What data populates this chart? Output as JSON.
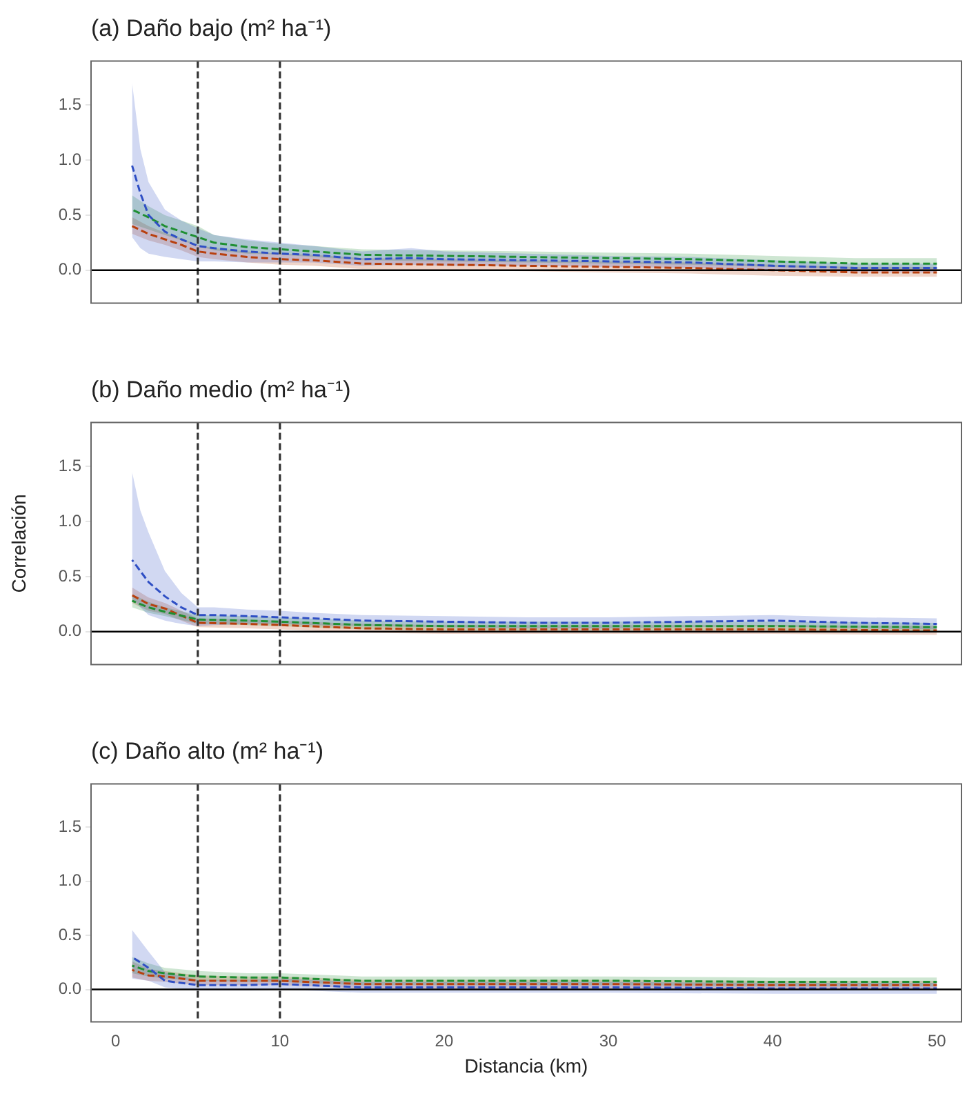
{
  "chart_data": [
    {
      "type": "line",
      "title": "(a) Daño bajo (m² ha⁻¹)",
      "line_style": "dashed",
      "marker": "none",
      "grid": false,
      "legend": false,
      "tick_labels": "y",
      "xlim": [
        -1.5,
        51.5
      ],
      "xticks": [
        0,
        10,
        20,
        30,
        40,
        50
      ],
      "ylim": [
        -0.3,
        1.9
      ],
      "yticks": [
        {
          "value": 0,
          "label": "0.0"
        },
        {
          "value": 0.5,
          "label": "0.5"
        },
        {
          "value": 1,
          "label": "1.0"
        },
        {
          "value": 1.5,
          "label": "1.5"
        }
      ],
      "ref_lines": [
        {
          "axis": "x",
          "value": 5,
          "line_style": "dashed",
          "color": "#333333"
        },
        {
          "axis": "x",
          "value": 10,
          "line_style": "dashed",
          "color": "#333333"
        },
        {
          "axis": "y",
          "value": 0,
          "line_style": "solid",
          "color": "#000000"
        }
      ],
      "series": [
        {
          "color": "#2f4fc4",
          "x": [
            1,
            1.5,
            2,
            3,
            4,
            5,
            6,
            8,
            10,
            12,
            15,
            18,
            20,
            25,
            30,
            35,
            40,
            45,
            50
          ],
          "values": [
            0.95,
            0.7,
            0.5,
            0.35,
            0.28,
            0.22,
            0.2,
            0.17,
            0.15,
            0.14,
            0.1,
            0.11,
            0.1,
            0.09,
            0.08,
            0.07,
            0.04,
            0.02,
            0.02
          ],
          "lower": [
            0.3,
            0.2,
            0.15,
            0.12,
            0.1,
            0.08,
            0.08,
            0.07,
            0.07,
            0.07,
            0.04,
            0.05,
            0.04,
            0.04,
            0.03,
            0.02,
            0,
            -0.02,
            -0.02
          ],
          "upper": [
            1.7,
            1.1,
            0.8,
            0.55,
            0.45,
            0.38,
            0.32,
            0.28,
            0.25,
            0.22,
            0.17,
            0.2,
            0.17,
            0.15,
            0.13,
            0.12,
            0.09,
            0.06,
            0.06
          ]
        },
        {
          "color": "#1f8f33",
          "x": [
            1,
            2,
            3,
            4,
            5,
            6,
            8,
            10,
            12,
            15,
            20,
            25,
            30,
            35,
            40,
            45,
            50
          ],
          "values": [
            0.55,
            0.48,
            0.4,
            0.35,
            0.3,
            0.25,
            0.21,
            0.19,
            0.17,
            0.14,
            0.13,
            0.12,
            0.11,
            0.1,
            0.08,
            0.06,
            0.06
          ],
          "lower": [
            0.42,
            0.37,
            0.32,
            0.27,
            0.22,
            0.18,
            0.15,
            0.14,
            0.12,
            0.09,
            0.08,
            0.07,
            0.06,
            0.05,
            0.03,
            0.01,
            0.01
          ],
          "upper": [
            0.68,
            0.58,
            0.5,
            0.45,
            0.4,
            0.32,
            0.27,
            0.24,
            0.22,
            0.19,
            0.18,
            0.17,
            0.16,
            0.15,
            0.13,
            0.11,
            0.11
          ]
        },
        {
          "color": "#b8400f",
          "x": [
            1,
            2,
            3,
            4,
            5,
            6,
            8,
            10,
            12,
            15,
            20,
            25,
            30,
            35,
            40,
            45,
            50
          ],
          "values": [
            0.4,
            0.33,
            0.28,
            0.23,
            0.17,
            0.15,
            0.12,
            0.1,
            0.09,
            0.06,
            0.05,
            0.04,
            0.03,
            0.02,
            0,
            -0.02,
            -0.02
          ],
          "lower": [
            0.33,
            0.27,
            0.23,
            0.18,
            0.12,
            0.1,
            0.07,
            0.05,
            0.04,
            0.01,
            0,
            -0.01,
            -0.02,
            -0.03,
            -0.05,
            -0.06,
            -0.06
          ],
          "upper": [
            0.48,
            0.4,
            0.34,
            0.29,
            0.23,
            0.2,
            0.17,
            0.15,
            0.14,
            0.11,
            0.1,
            0.09,
            0.08,
            0.07,
            0.05,
            0.03,
            0.03
          ]
        }
      ]
    },
    {
      "type": "line",
      "title": "(b) Daño medio (m² ha⁻¹)",
      "ylabel": "Correlación",
      "line_style": "dashed",
      "marker": "none",
      "grid": false,
      "legend": false,
      "tick_labels": "y",
      "xlim": [
        -1.5,
        51.5
      ],
      "xticks": [
        0,
        10,
        20,
        30,
        40,
        50
      ],
      "ylim": [
        -0.3,
        1.9
      ],
      "yticks": [
        {
          "value": 0,
          "label": "0.0"
        },
        {
          "value": 0.5,
          "label": "0.5"
        },
        {
          "value": 1,
          "label": "1.0"
        },
        {
          "value": 1.5,
          "label": "1.5"
        }
      ],
      "ref_lines": [
        {
          "axis": "x",
          "value": 5,
          "line_style": "dashed",
          "color": "#333333"
        },
        {
          "axis": "x",
          "value": 10,
          "line_style": "dashed",
          "color": "#333333"
        },
        {
          "axis": "y",
          "value": 0,
          "line_style": "solid",
          "color": "#000000"
        }
      ],
      "series": [
        {
          "color": "#2f4fc4",
          "x": [
            1,
            1.5,
            2,
            3,
            4,
            5,
            6,
            8,
            10,
            12,
            15,
            20,
            25,
            30,
            35,
            40,
            45,
            50
          ],
          "values": [
            0.65,
            0.55,
            0.45,
            0.32,
            0.22,
            0.15,
            0.15,
            0.14,
            0.13,
            0.12,
            0.1,
            0.09,
            0.08,
            0.08,
            0.09,
            0.1,
            0.08,
            0.07
          ],
          "lower": [
            0.3,
            0.22,
            0.15,
            0.1,
            0.07,
            0.05,
            0.06,
            0.07,
            0.07,
            0.06,
            0.05,
            0.04,
            0.03,
            0.03,
            0.04,
            0.05,
            0.03,
            0.02
          ],
          "upper": [
            1.45,
            1.1,
            0.9,
            0.55,
            0.35,
            0.22,
            0.22,
            0.2,
            0.19,
            0.17,
            0.15,
            0.14,
            0.13,
            0.13,
            0.14,
            0.15,
            0.13,
            0.12
          ]
        },
        {
          "color": "#1f8f33",
          "x": [
            1,
            2,
            3,
            5,
            8,
            10,
            15,
            20,
            30,
            40,
            50
          ],
          "values": [
            0.28,
            0.22,
            0.18,
            0.11,
            0.1,
            0.09,
            0.06,
            0.05,
            0.05,
            0.05,
            0.04
          ],
          "lower": [
            0.22,
            0.17,
            0.14,
            0.07,
            0.06,
            0.05,
            0.02,
            0.01,
            0.01,
            0.01,
            0
          ],
          "upper": [
            0.34,
            0.27,
            0.22,
            0.15,
            0.14,
            0.13,
            0.1,
            0.09,
            0.09,
            0.09,
            0.08
          ]
        },
        {
          "color": "#b8400f",
          "x": [
            1,
            2,
            3,
            5,
            8,
            10,
            15,
            20,
            30,
            40,
            50
          ],
          "values": [
            0.33,
            0.25,
            0.21,
            0.08,
            0.07,
            0.06,
            0.03,
            0.02,
            0.02,
            0.02,
            0.01
          ],
          "lower": [
            0.26,
            0.19,
            0.16,
            0.04,
            0.03,
            0.02,
            -0.01,
            -0.02,
            -0.02,
            -0.02,
            -0.03
          ],
          "upper": [
            0.4,
            0.31,
            0.26,
            0.12,
            0.11,
            0.1,
            0.07,
            0.06,
            0.06,
            0.06,
            0.05
          ]
        }
      ]
    },
    {
      "type": "line",
      "title": "(c) Daño alto (m² ha⁻¹)",
      "xlabel": "Distancia (km)",
      "line_style": "dashed",
      "marker": "none",
      "grid": false,
      "legend": false,
      "xlim": [
        -1.5,
        51.5
      ],
      "xticks": [
        0,
        10,
        20,
        30,
        40,
        50
      ],
      "ylim": [
        -0.3,
        1.9
      ],
      "yticks": [
        {
          "value": 0,
          "label": "0.0"
        },
        {
          "value": 0.5,
          "label": "0.5"
        },
        {
          "value": 1,
          "label": "1.0"
        },
        {
          "value": 1.5,
          "label": "1.5"
        }
      ],
      "ref_lines": [
        {
          "axis": "x",
          "value": 5,
          "line_style": "dashed",
          "color": "#333333"
        },
        {
          "axis": "x",
          "value": 10,
          "line_style": "dashed",
          "color": "#333333"
        },
        {
          "axis": "y",
          "value": 0,
          "line_style": "solid",
          "color": "#000000"
        }
      ],
      "series": [
        {
          "color": "#2f4fc4",
          "x": [
            1,
            2,
            3,
            5,
            8,
            10,
            15,
            20,
            30,
            40,
            50
          ],
          "values": [
            0.3,
            0.2,
            0.08,
            0.04,
            0.04,
            0.05,
            0.02,
            0.02,
            0.02,
            0.01,
            0.01
          ],
          "lower": [
            0.1,
            0.08,
            0.02,
            -0.01,
            -0.01,
            0,
            -0.03,
            -0.03,
            -0.03,
            -0.04,
            -0.04
          ],
          "upper": [
            0.55,
            0.35,
            0.16,
            0.09,
            0.09,
            0.1,
            0.07,
            0.07,
            0.07,
            0.06,
            0.06
          ]
        },
        {
          "color": "#1f8f33",
          "x": [
            1,
            2,
            3,
            5,
            8,
            10,
            15,
            20,
            30,
            40,
            50
          ],
          "values": [
            0.22,
            0.17,
            0.15,
            0.12,
            0.11,
            0.11,
            0.08,
            0.08,
            0.08,
            0.07,
            0.07
          ],
          "lower": [
            0.15,
            0.12,
            0.1,
            0.08,
            0.07,
            0.07,
            0.04,
            0.04,
            0.04,
            0.03,
            0.03
          ],
          "upper": [
            0.3,
            0.24,
            0.2,
            0.17,
            0.15,
            0.15,
            0.12,
            0.12,
            0.12,
            0.11,
            0.11
          ]
        },
        {
          "color": "#b8400f",
          "x": [
            1,
            2,
            3,
            5,
            8,
            10,
            15,
            20,
            30,
            40,
            50
          ],
          "values": [
            0.18,
            0.13,
            0.12,
            0.08,
            0.08,
            0.08,
            0.05,
            0.05,
            0.05,
            0.04,
            0.04
          ],
          "lower": [
            0.11,
            0.08,
            0.07,
            0.04,
            0.04,
            0.04,
            0.01,
            0.01,
            0.01,
            0,
            0
          ],
          "upper": [
            0.26,
            0.19,
            0.17,
            0.13,
            0.12,
            0.12,
            0.09,
            0.09,
            0.09,
            0.08,
            0.08
          ]
        }
      ]
    }
  ]
}
